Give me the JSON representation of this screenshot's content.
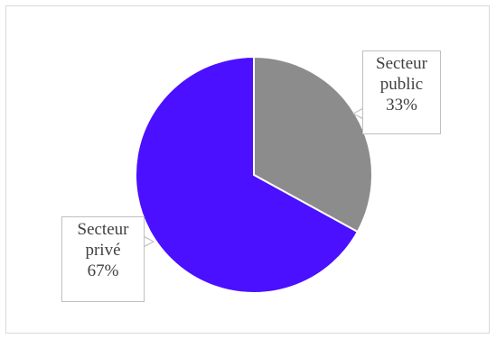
{
  "chart_data": {
    "type": "pie",
    "title": "",
    "slices": [
      {
        "label": "Secteur public",
        "value": 33,
        "display": "33%",
        "color": "#8c8c8c"
      },
      {
        "label": "Secteur privé",
        "value": 67,
        "display": "67%",
        "color": "#4a10ff"
      }
    ],
    "labels": {
      "public": {
        "line1": "Secteur",
        "line2": "public",
        "line3": "33%"
      },
      "prive": {
        "line1": "Secteur",
        "line2": "privé",
        "line3": "67%"
      }
    },
    "start_angle": "12 o'clock",
    "direction": "clockwise",
    "legend": "none",
    "colors": {
      "slice_border": "#ffffff",
      "callout_border": "#bfbfbf",
      "text": "#404040"
    }
  }
}
